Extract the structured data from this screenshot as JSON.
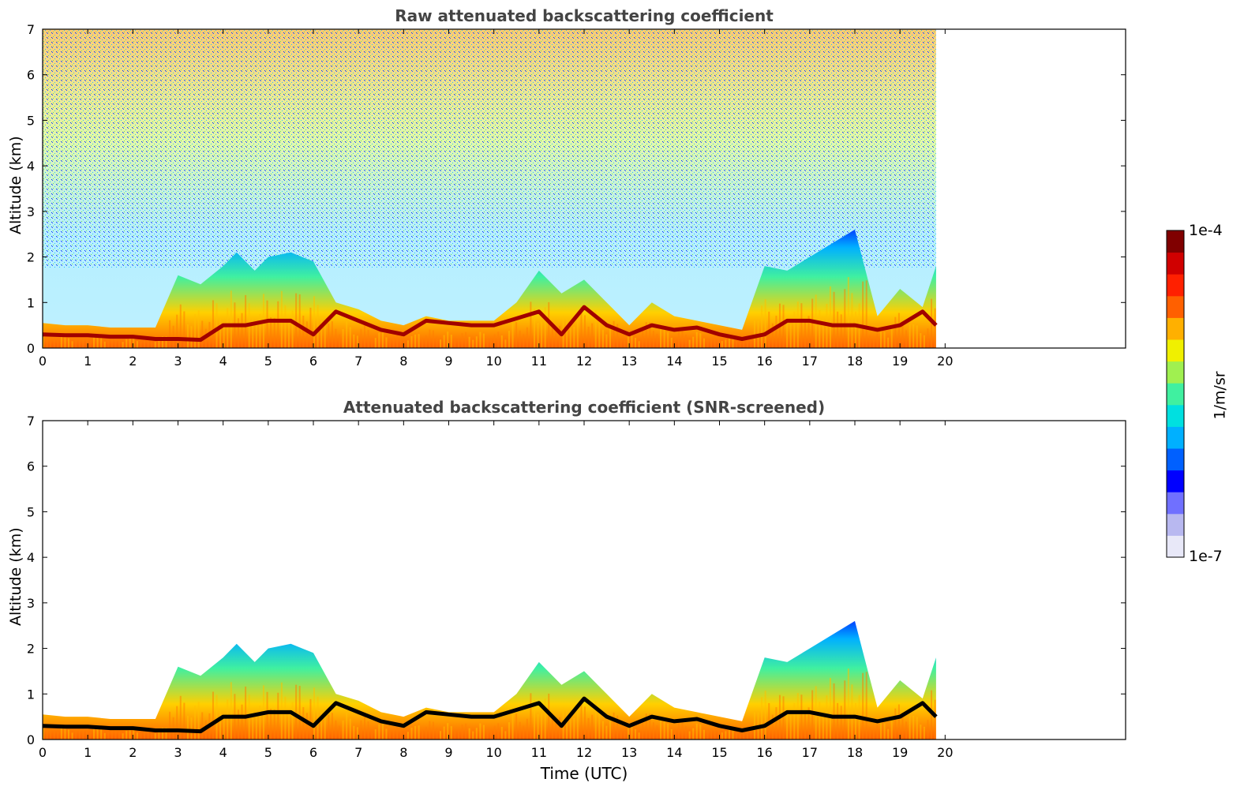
{
  "chart_data": [
    {
      "type": "heatmap",
      "title": "Raw attenuated backscattering coefficient",
      "xlabel": "",
      "ylabel": "Altitude (km)",
      "xlim": [
        0,
        24
      ],
      "ylim": [
        0,
        7
      ],
      "x_ticks": [
        "0",
        "1",
        "2",
        "3",
        "4",
        "5",
        "6",
        "7",
        "8",
        "9",
        "10",
        "11",
        "12",
        "13",
        "14",
        "15",
        "16",
        "17",
        "18",
        "19",
        "20"
      ],
      "y_ticks": [
        "0",
        "1",
        "2",
        "3",
        "4",
        "5",
        "6",
        "7"
      ],
      "data_end_time": 19.8,
      "boundary_layer_top": [
        [
          0,
          0.55
        ],
        [
          0.5,
          0.5
        ],
        [
          1,
          0.5
        ],
        [
          1.5,
          0.45
        ],
        [
          2,
          0.45
        ],
        [
          2.5,
          0.45
        ],
        [
          3,
          1.6
        ],
        [
          3.5,
          1.4
        ],
        [
          4,
          1.8
        ],
        [
          4.3,
          2.1
        ],
        [
          4.7,
          1.7
        ],
        [
          5,
          2.0
        ],
        [
          5.5,
          2.1
        ],
        [
          6,
          1.9
        ],
        [
          6.5,
          1.0
        ],
        [
          7,
          0.85
        ],
        [
          7.5,
          0.6
        ],
        [
          8,
          0.5
        ],
        [
          8.5,
          0.7
        ],
        [
          9,
          0.6
        ],
        [
          9.5,
          0.6
        ],
        [
          10,
          0.6
        ],
        [
          10.5,
          1.0
        ],
        [
          11,
          1.7
        ],
        [
          11.5,
          1.2
        ],
        [
          12,
          1.5
        ],
        [
          12.5,
          1.0
        ],
        [
          13,
          0.5
        ],
        [
          13.5,
          1.0
        ],
        [
          14,
          0.7
        ],
        [
          14.5,
          0.6
        ],
        [
          15,
          0.5
        ],
        [
          15.5,
          0.4
        ],
        [
          16,
          1.8
        ],
        [
          16.5,
          1.7
        ],
        [
          17,
          2.0
        ],
        [
          17.5,
          2.3
        ],
        [
          18,
          2.6
        ],
        [
          18.5,
          0.7
        ],
        [
          19,
          1.3
        ],
        [
          19.5,
          0.9
        ],
        [
          19.8,
          1.8
        ]
      ],
      "aerosol_layer": [
        [
          0,
          0.3
        ],
        [
          0.5,
          0.28
        ],
        [
          1,
          0.28
        ],
        [
          1.5,
          0.25
        ],
        [
          2,
          0.25
        ],
        [
          2.5,
          0.2
        ],
        [
          3,
          0.2
        ],
        [
          3.5,
          0.18
        ],
        [
          4,
          0.5
        ],
        [
          4.5,
          0.5
        ],
        [
          5,
          0.6
        ],
        [
          5.5,
          0.6
        ],
        [
          6,
          0.3
        ],
        [
          6.5,
          0.8
        ],
        [
          7,
          0.6
        ],
        [
          7.5,
          0.4
        ],
        [
          8,
          0.3
        ],
        [
          8.5,
          0.6
        ],
        [
          9,
          0.55
        ],
        [
          9.5,
          0.5
        ],
        [
          10,
          0.5
        ],
        [
          10.5,
          0.65
        ],
        [
          11,
          0.8
        ],
        [
          11.5,
          0.3
        ],
        [
          12,
          0.9
        ],
        [
          12.5,
          0.5
        ],
        [
          13,
          0.3
        ],
        [
          13.5,
          0.5
        ],
        [
          14,
          0.4
        ],
        [
          14.5,
          0.45
        ],
        [
          15,
          0.3
        ],
        [
          15.5,
          0.2
        ],
        [
          16,
          0.3
        ],
        [
          16.5,
          0.6
        ],
        [
          17,
          0.6
        ],
        [
          17.5,
          0.5
        ],
        [
          18,
          0.5
        ],
        [
          18.5,
          0.4
        ],
        [
          19,
          0.5
        ],
        [
          19.5,
          0.8
        ],
        [
          19.8,
          0.5
        ]
      ]
    },
    {
      "type": "heatmap",
      "title": "Attenuated backscattering coefficient (SNR-screened)",
      "xlabel": "Time (UTC)",
      "ylabel": "Altitude (km)",
      "xlim": [
        0,
        24
      ],
      "ylim": [
        0,
        7
      ],
      "x_ticks": [
        "0",
        "1",
        "2",
        "3",
        "4",
        "5",
        "6",
        "7",
        "8",
        "9",
        "10",
        "11",
        "12",
        "13",
        "14",
        "15",
        "16",
        "17",
        "18",
        "19",
        "20"
      ],
      "y_ticks": [
        "0",
        "1",
        "2",
        "3",
        "4",
        "5",
        "6",
        "7"
      ],
      "data_end_time": 19.8
    }
  ],
  "colorbar": {
    "max_label": "1e-4",
    "min_label": "1e-7",
    "unit": "1/m/sr",
    "colors": [
      "#e8e8f8",
      "#b8b8f0",
      "#7070ff",
      "#0000ff",
      "#0060ff",
      "#00b0ff",
      "#00e0e0",
      "#40f0a0",
      "#a0f050",
      "#f0f000",
      "#ffb000",
      "#ff6000",
      "#ff2000",
      "#d00000",
      "#800000"
    ]
  }
}
